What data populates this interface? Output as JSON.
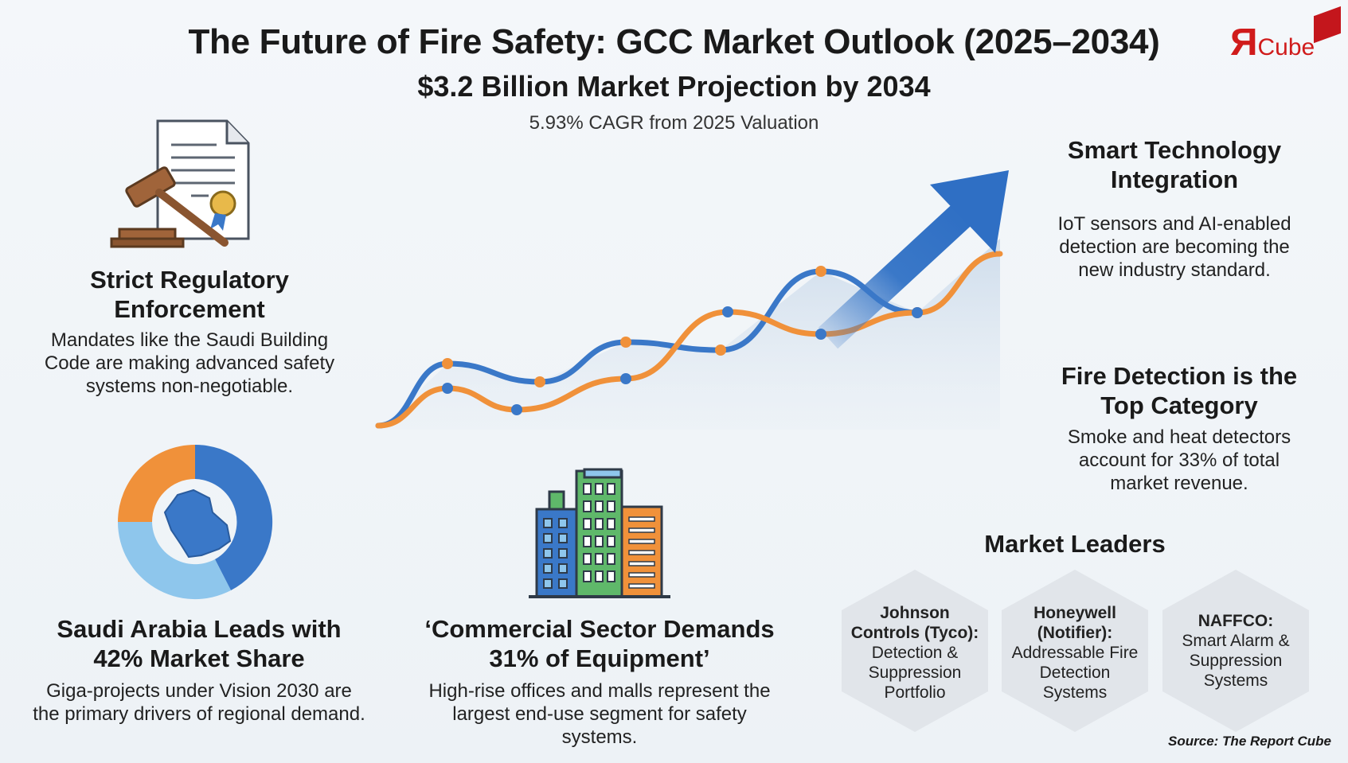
{
  "header": {
    "title": "The Future of Fire Safety: GCC Market Outlook (2025–2034)",
    "subtitle": "$3.2 Billion Market Projection by 2034",
    "tagline": "5.93% CAGR from 2025 Valuation"
  },
  "logo": {
    "mark": "Я",
    "text": "Cube"
  },
  "sections": [
    {
      "heading": "Strict Regulatory Enforcement",
      "body": "Mandates like the Saudi Building Code are making advanced safety systems non-negotiable."
    },
    {
      "heading": "Smart Technology Integration",
      "body": "IoT sensors and AI-enabled detection are becoming the new industry standard."
    },
    {
      "heading": "Fire Detection is the Top Category",
      "body": "Smoke and heat detectors account for 33% of total market revenue."
    },
    {
      "heading": "Saudi Arabia Leads with 42% Market Share",
      "body": "Giga-projects under Vision 2030 are the primary drivers of regional demand."
    },
    {
      "heading": "‘Commercial Sector Demands 31% of Equipment’",
      "body": "High-rise offices and malls represent the largest end-use segment for safety systems."
    }
  ],
  "leaders": {
    "title": "Market Leaders",
    "items": [
      {
        "name": "Johnson Controls (Tyco):",
        "description": "Detection & Suppression Portfolio"
      },
      {
        "name": "Honeywell (Notifier):",
        "description": "Addressable Fire Detection Systems"
      },
      {
        "name": "NAFFCO:",
        "description": "Smart Alarm & Suppression Systems"
      }
    ]
  },
  "source": "Source: The Report Cube"
}
